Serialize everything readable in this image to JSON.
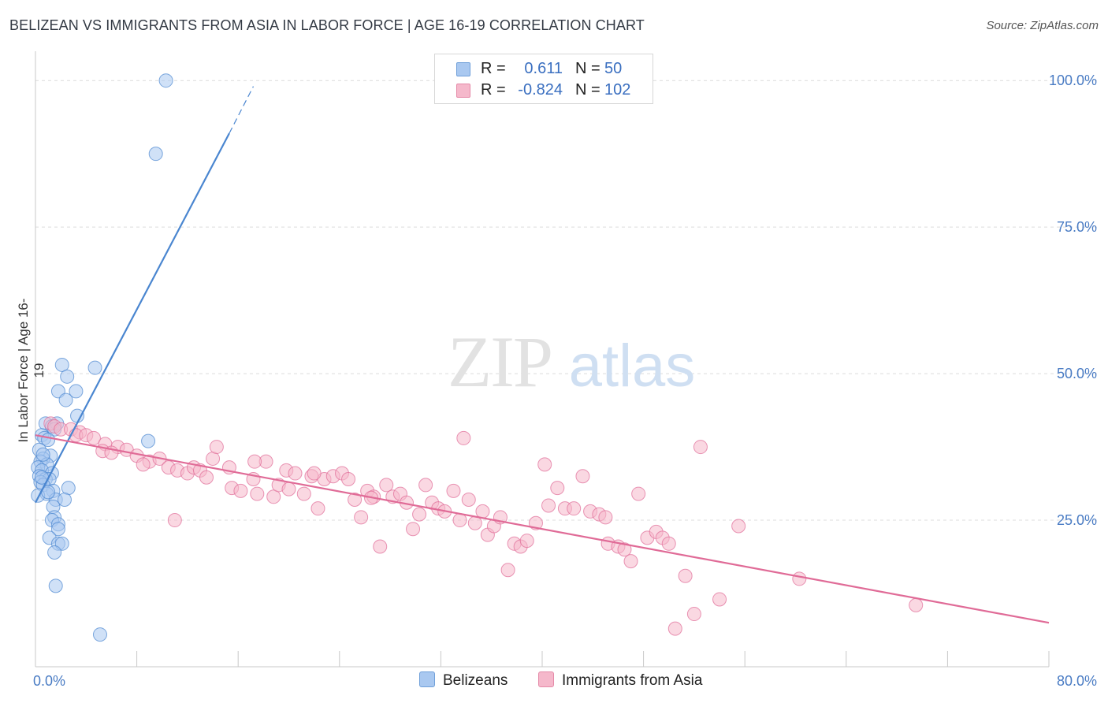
{
  "header": {
    "title": "BELIZEAN VS IMMIGRANTS FROM ASIA IN LABOR FORCE | AGE 16-19 CORRELATION CHART",
    "source": "Source: ZipAtlas.com"
  },
  "watermark": {
    "zip": "ZIP",
    "atlas": "atlas"
  },
  "legend": {
    "rows": [
      {
        "r_label": "R =",
        "r_value": "0.611",
        "n_label": "N =",
        "n_value": "50",
        "color": "#a9c8f0"
      },
      {
        "r_label": "R =",
        "r_value": "-0.824",
        "n_label": "N =",
        "n_value": "102",
        "color": "#f5b8cb"
      }
    ]
  },
  "bottom_legend": [
    {
      "label": "Belizeans",
      "color": "#a9c8f0"
    },
    {
      "label": "Immigrants from Asia",
      "color": "#f5b8cb"
    }
  ],
  "chart_data": {
    "type": "scatter",
    "title": "BELIZEAN VS IMMIGRANTS FROM ASIA IN LABOR FORCE | AGE 16-19 CORRELATION CHART",
    "xlabel": "",
    "ylabel": "In Labor Force | Age 16-19",
    "xlim": [
      0,
      80
    ],
    "ylim": [
      0,
      105
    ],
    "x_tick_labels": [
      "0.0%",
      "80.0%"
    ],
    "y_ticks": [
      25,
      50,
      75,
      100
    ],
    "y_tick_labels": [
      "25.0%",
      "50.0%",
      "75.0%",
      "100.0%"
    ],
    "grid": true,
    "series": [
      {
        "name": "Belizeans",
        "color": "#4a86d0",
        "fill": "#a9c8f0",
        "r": 0.611,
        "n": 50,
        "trend": {
          "x0": 0,
          "y0": 28,
          "x1": 15.3,
          "y1": 91,
          "dash_x1": 17.2,
          "dash_y1": 99
        },
        "points": [
          [
            10.3,
            100
          ],
          [
            9.5,
            87.5
          ],
          [
            2.1,
            51.5
          ],
          [
            4.7,
            51
          ],
          [
            2.5,
            49.5
          ],
          [
            1.8,
            47
          ],
          [
            3.2,
            47
          ],
          [
            2.4,
            45.5
          ],
          [
            3.3,
            42.8
          ],
          [
            8.9,
            38.5
          ],
          [
            0.8,
            41.5
          ],
          [
            1.3,
            41
          ],
          [
            1.7,
            41.5
          ],
          [
            1.5,
            40.5
          ],
          [
            0.5,
            39.5
          ],
          [
            0.7,
            39
          ],
          [
            1.0,
            38.7
          ],
          [
            0.3,
            37
          ],
          [
            1.2,
            36
          ],
          [
            0.6,
            35.5
          ],
          [
            0.4,
            35
          ],
          [
            0.9,
            34.5
          ],
          [
            0.2,
            34
          ],
          [
            0.5,
            33.5
          ],
          [
            1.3,
            33
          ],
          [
            0.3,
            32.5
          ],
          [
            0.8,
            32
          ],
          [
            1.1,
            32
          ],
          [
            0.4,
            31.5
          ],
          [
            0.6,
            31
          ],
          [
            2.6,
            30.5
          ],
          [
            1.4,
            30
          ],
          [
            0.9,
            29.5
          ],
          [
            0.2,
            29.2
          ],
          [
            1.6,
            28.5
          ],
          [
            2.3,
            28.5
          ],
          [
            1.4,
            27.3
          ],
          [
            1.5,
            25.5
          ],
          [
            1.3,
            25
          ],
          [
            1.8,
            24.3
          ],
          [
            1.8,
            23.5
          ],
          [
            1.1,
            22
          ],
          [
            1.8,
            21
          ],
          [
            2.1,
            21
          ],
          [
            1.5,
            19.5
          ],
          [
            1.6,
            13.8
          ],
          [
            5.1,
            5.5
          ],
          [
            0.5,
            32.3
          ],
          [
            1.0,
            29.8
          ],
          [
            0.6,
            36.2
          ]
        ]
      },
      {
        "name": "Immigrants from Asia",
        "color": "#e06b97",
        "fill": "#f5b8cb",
        "r": -0.824,
        "n": 102,
        "trend": {
          "x0": 0,
          "y0": 39.5,
          "x1": 80,
          "y1": 7.5
        },
        "points": [
          [
            1.2,
            41.5
          ],
          [
            1.5,
            41
          ],
          [
            2.0,
            40.5
          ],
          [
            2.8,
            40.5
          ],
          [
            3.5,
            40
          ],
          [
            3.2,
            39.5
          ],
          [
            4.0,
            39.5
          ],
          [
            4.6,
            39
          ],
          [
            5.5,
            38
          ],
          [
            6.5,
            37.5
          ],
          [
            5.3,
            36.8
          ],
          [
            6.0,
            36.5
          ],
          [
            7.2,
            37
          ],
          [
            8.0,
            36
          ],
          [
            9.0,
            35
          ],
          [
            9.8,
            35.5
          ],
          [
            10.5,
            34
          ],
          [
            11.2,
            33.5
          ],
          [
            12.0,
            33
          ],
          [
            12.5,
            34
          ],
          [
            13.0,
            33.5
          ],
          [
            14.0,
            35.5
          ],
          [
            14.3,
            37.5
          ],
          [
            15.3,
            34
          ],
          [
            15.5,
            30.5
          ],
          [
            16.2,
            30
          ],
          [
            17.2,
            32
          ],
          [
            17.5,
            29.5
          ],
          [
            18.2,
            35
          ],
          [
            18.8,
            29
          ],
          [
            19.2,
            31
          ],
          [
            19.8,
            33.5
          ],
          [
            20.5,
            33
          ],
          [
            21.2,
            29.5
          ],
          [
            21.8,
            32.5
          ],
          [
            22.3,
            27
          ],
          [
            22.8,
            32
          ],
          [
            23.5,
            32.5
          ],
          [
            24.2,
            33
          ],
          [
            24.7,
            32
          ],
          [
            25.2,
            28.5
          ],
          [
            25.7,
            25.5
          ],
          [
            26.2,
            30
          ],
          [
            26.7,
            29
          ],
          [
            27.2,
            20.5
          ],
          [
            27.7,
            31
          ],
          [
            28.2,
            29
          ],
          [
            28.8,
            29.5
          ],
          [
            29.3,
            28
          ],
          [
            29.8,
            23.5
          ],
          [
            30.3,
            26
          ],
          [
            30.8,
            31
          ],
          [
            31.3,
            28
          ],
          [
            31.8,
            27
          ],
          [
            32.3,
            26.5
          ],
          [
            33.0,
            30
          ],
          [
            33.5,
            25
          ],
          [
            34.2,
            28.5
          ],
          [
            34.7,
            24.5
          ],
          [
            35.3,
            26.5
          ],
          [
            35.7,
            22.5
          ],
          [
            36.2,
            24
          ],
          [
            36.7,
            25.5
          ],
          [
            37.3,
            16.5
          ],
          [
            37.8,
            21
          ],
          [
            38.3,
            20.5
          ],
          [
            38.8,
            21.5
          ],
          [
            39.5,
            24.5
          ],
          [
            40.2,
            34.5
          ],
          [
            40.5,
            27.5
          ],
          [
            41.2,
            30.5
          ],
          [
            41.8,
            27
          ],
          [
            42.5,
            27
          ],
          [
            43.2,
            32.5
          ],
          [
            43.8,
            26.5
          ],
          [
            44.5,
            26
          ],
          [
            45.2,
            21
          ],
          [
            46.0,
            20.5
          ],
          [
            46.5,
            20
          ],
          [
            47.0,
            18
          ],
          [
            47.6,
            29.5
          ],
          [
            48.3,
            22
          ],
          [
            49.0,
            23
          ],
          [
            49.5,
            22
          ],
          [
            50.0,
            21
          ],
          [
            50.5,
            6.5
          ],
          [
            51.3,
            15.5
          ],
          [
            52.0,
            9
          ],
          [
            52.5,
            37.5
          ],
          [
            54.0,
            11.5
          ],
          [
            55.5,
            24
          ],
          [
            60.3,
            15
          ],
          [
            69.5,
            10.5
          ],
          [
            17.3,
            35
          ],
          [
            45.0,
            25.5
          ],
          [
            11.0,
            25
          ],
          [
            8.5,
            34.5
          ],
          [
            33.8,
            39
          ],
          [
            22.0,
            33
          ],
          [
            26.5,
            28.8
          ],
          [
            20.0,
            30.3
          ],
          [
            13.5,
            32.3
          ]
        ]
      }
    ]
  }
}
